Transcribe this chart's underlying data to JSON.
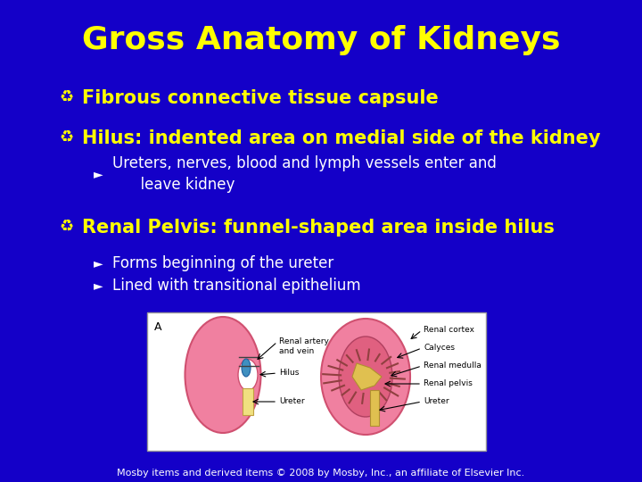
{
  "title": "Gross Anatomy of Kidneys",
  "title_color": "#FFFF00",
  "title_fontsize": 26,
  "background_color": "#1400C8",
  "bullet_color": "#FFFFFF",
  "yellow_color": "#FFFF00",
  "bullet_fontsize": 15,
  "subbullet_fontsize": 12,
  "bullets": [
    "Fibrous connective tissue capsule",
    "Hilus: indented area on medial side of the kidney",
    "Renal Pelvis: funnel-shaped area inside hilus"
  ],
  "sub1": "Ureters, nerves, blood and lymph vessels enter and\n      leave kidney",
  "sub2a": "Forms beginning of the ureter",
  "sub2b": "Lined with transitional epithelium",
  "footer": "Mosby items and derived items © 2008 by Mosby, Inc., an affiliate of Elsevier Inc.",
  "footer_color": "#FFFFFF",
  "footer_fontsize": 8
}
